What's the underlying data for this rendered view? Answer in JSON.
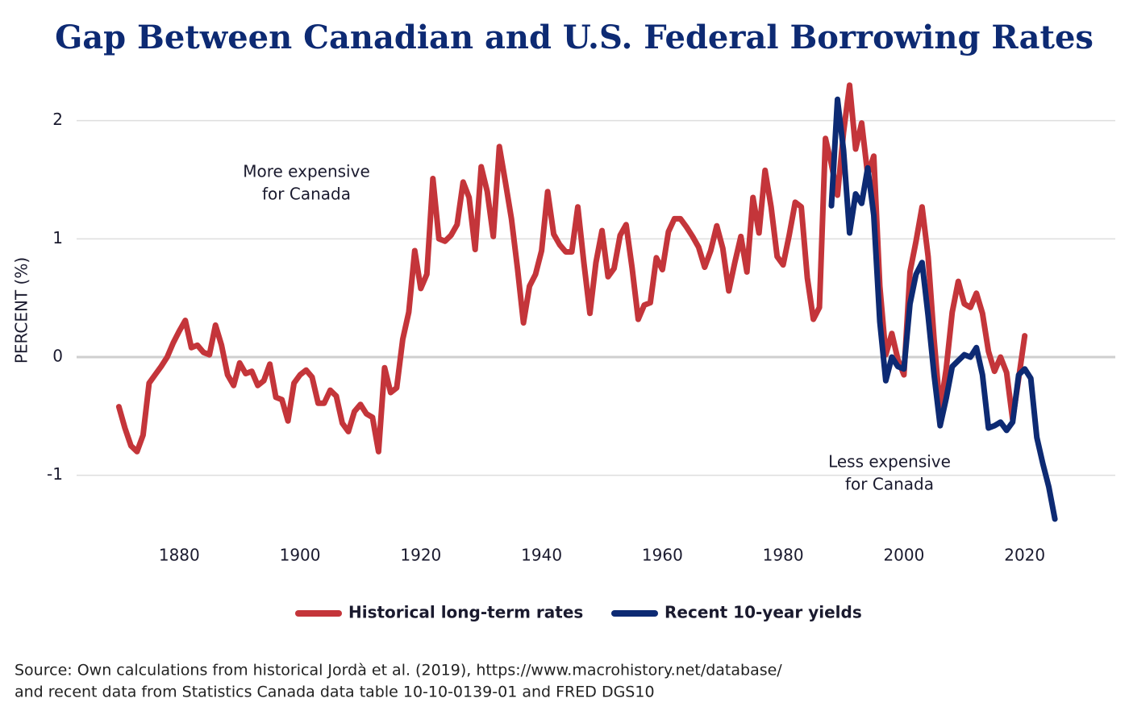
{
  "chart_data": {
    "type": "line",
    "title": "Gap Between Canadian and U.S. Federal Borrowing Rates",
    "ylabel": "PERCENT (%)",
    "xlim": [
      1863,
      2035
    ],
    "xticks": [
      1880,
      1900,
      1920,
      1940,
      1960,
      1980,
      2000,
      2020
    ],
    "ylim": [
      -1.5,
      2.4
    ],
    "yticks": [
      -1,
      0,
      1,
      2
    ],
    "grid": true,
    "legend": "bottom",
    "annotations": [
      [
        "More expensive",
        "for Canada"
      ],
      [
        "Less expensive",
        "for Canada"
      ]
    ],
    "source": [
      "Source: Own calculations from historical Jordà et al. (2019), https://www.macrohistory.net/database/",
      "and recent data from Statistics Canada data table 10-10-0139-01 and FRED DGS10"
    ],
    "series": [
      {
        "name": "Historical long-term rates",
        "color": "#c4353a",
        "x": [
          1870,
          1871,
          1872,
          1873,
          1874,
          1875,
          1876,
          1877,
          1878,
          1879,
          1880,
          1881,
          1882,
          1883,
          1884,
          1885,
          1886,
          1887,
          1888,
          1889,
          1890,
          1891,
          1892,
          1893,
          1894,
          1895,
          1896,
          1897,
          1898,
          1899,
          1900,
          1901,
          1902,
          1903,
          1904,
          1905,
          1906,
          1907,
          1908,
          1909,
          1910,
          1911,
          1912,
          1913,
          1914,
          1915,
          1916,
          1917,
          1918,
          1919,
          1920,
          1921,
          1922,
          1923,
          1924,
          1925,
          1926,
          1927,
          1928,
          1929,
          1930,
          1931,
          1932,
          1933,
          1934,
          1935,
          1936,
          1937,
          1938,
          1939,
          1940,
          1941,
          1942,
          1943,
          1944,
          1945,
          1946,
          1947,
          1948,
          1949,
          1950,
          1951,
          1952,
          1953,
          1954,
          1955,
          1956,
          1957,
          1958,
          1959,
          1960,
          1961,
          1962,
          1963,
          1964,
          1965,
          1966,
          1967,
          1968,
          1969,
          1970,
          1971,
          1972,
          1973,
          1974,
          1975,
          1976,
          1977,
          1978,
          1979,
          1980,
          1981,
          1982,
          1983,
          1984,
          1985,
          1986,
          1987,
          1988,
          1989,
          1990,
          1991,
          1992,
          1993,
          1994,
          1995,
          1996,
          1997,
          1998,
          1999,
          2000,
          2001,
          2002,
          2003,
          2004,
          2005,
          2006,
          2007,
          2008,
          2009,
          2010,
          2011,
          2012,
          2013,
          2014,
          2015,
          2016,
          2017,
          2018,
          2019,
          2020
        ],
        "values": [
          -0.42,
          -0.6,
          -0.75,
          -0.8,
          -0.66,
          -0.22,
          -0.15,
          -0.08,
          0.0,
          0.12,
          0.22,
          0.31,
          0.08,
          0.1,
          0.04,
          0.02,
          0.27,
          0.1,
          -0.15,
          -0.24,
          -0.05,
          -0.14,
          -0.12,
          -0.24,
          -0.2,
          -0.06,
          -0.34,
          -0.36,
          -0.54,
          -0.22,
          -0.15,
          -0.11,
          -0.17,
          -0.39,
          -0.39,
          -0.28,
          -0.33,
          -0.56,
          -0.63,
          -0.46,
          -0.4,
          -0.48,
          -0.51,
          -0.8,
          -0.09,
          -0.3,
          -0.26,
          0.15,
          0.38,
          0.9,
          0.58,
          0.7,
          1.51,
          1.0,
          0.98,
          1.03,
          1.12,
          1.48,
          1.35,
          0.91,
          1.61,
          1.4,
          1.02,
          1.78,
          1.48,
          1.17,
          0.75,
          0.29,
          0.6,
          0.7,
          0.9,
          1.4,
          1.04,
          0.95,
          0.89,
          0.89,
          1.27,
          0.8,
          0.37,
          0.8,
          1.07,
          0.68,
          0.75,
          1.03,
          1.12,
          0.75,
          0.32,
          0.44,
          0.46,
          0.84,
          0.74,
          1.06,
          1.17,
          1.17,
          1.1,
          1.02,
          0.93,
          0.76,
          0.9,
          1.11,
          0.92,
          0.56,
          0.8,
          1.02,
          0.72,
          1.35,
          1.05,
          1.58,
          1.27,
          0.85,
          0.78,
          1.03,
          1.31,
          1.27,
          0.67,
          0.32,
          0.42,
          1.85,
          1.63,
          1.37,
          1.9,
          2.3,
          1.76,
          1.98,
          1.54,
          1.7,
          0.6,
          0.02,
          0.2,
          -0.02,
          -0.15,
          0.72,
          0.98,
          1.27,
          0.85,
          0.15,
          -0.45,
          -0.1,
          0.38,
          0.64,
          0.45,
          0.42,
          0.54,
          0.37,
          0.05,
          -0.12,
          0.0,
          -0.13,
          -0.53,
          -0.18,
          0.18
        ]
      },
      {
        "name": "Recent 10-year yields",
        "color": "#0d2a73",
        "x": [
          1988,
          1989,
          1990,
          1991,
          1992,
          1993,
          1994,
          1995,
          1996,
          1997,
          1998,
          1999,
          2000,
          2001,
          2002,
          2003,
          2004,
          2005,
          2006,
          2007,
          2008,
          2009,
          2010,
          2011,
          2012,
          2013,
          2014,
          2015,
          2016,
          2017,
          2018,
          2019,
          2020,
          2021,
          2022,
          2023,
          2024,
          2025
        ],
        "values": [
          1.28,
          2.18,
          1.75,
          1.05,
          1.38,
          1.3,
          1.6,
          1.2,
          0.3,
          -0.2,
          0.0,
          -0.08,
          -0.1,
          0.45,
          0.7,
          0.8,
          0.35,
          -0.15,
          -0.58,
          -0.35,
          -0.08,
          -0.03,
          0.02,
          0.0,
          0.08,
          -0.15,
          -0.6,
          -0.58,
          -0.55,
          -0.62,
          -0.55,
          -0.15,
          -0.1,
          -0.18,
          -0.68,
          -0.9,
          -1.1,
          -1.37
        ]
      }
    ]
  }
}
